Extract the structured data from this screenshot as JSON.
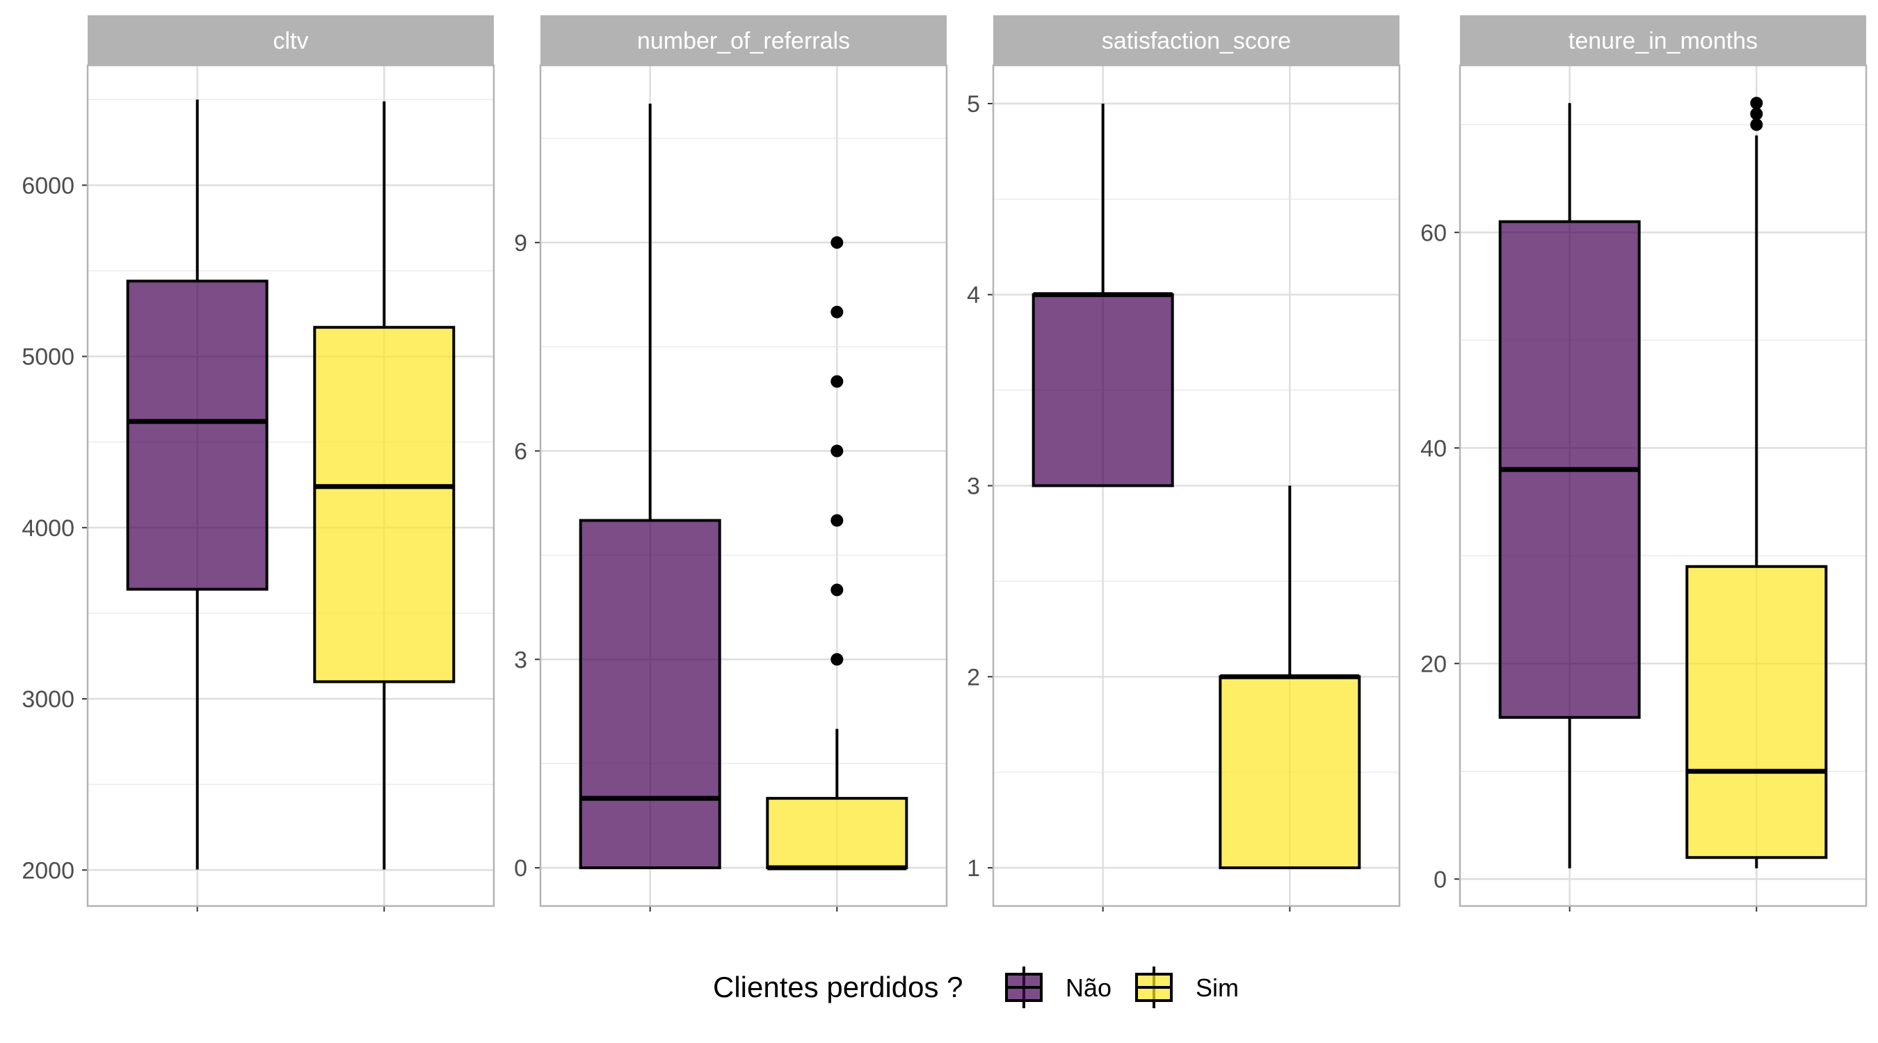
{
  "chart_data": {
    "type": "boxplot",
    "legend": {
      "title": "Clientes perdidos ?",
      "position": "bottom",
      "entries": [
        {
          "label": "Não",
          "color": "#440154"
        },
        {
          "label": "Sim",
          "color": "#FDE725"
        }
      ]
    },
    "fill_alpha": 0.7,
    "grid": true,
    "panels": [
      {
        "title": "cltv",
        "ylim": [
          1790,
          6700
        ],
        "yticks": [
          2000,
          3000,
          4000,
          5000,
          6000
        ],
        "ytick_labels": [
          "2000",
          "3000",
          "4000",
          "5000",
          "6000"
        ],
        "boxes": [
          {
            "group": "Não",
            "whisker_low": 2003,
            "q1": 3640,
            "median": 4620,
            "q3": 5440,
            "whisker_high": 6500,
            "outliers": []
          },
          {
            "group": "Sim",
            "whisker_low": 2003,
            "q1": 3100,
            "median": 4240,
            "q3": 5170,
            "whisker_high": 6490,
            "outliers": []
          }
        ]
      },
      {
        "title": "number_of_referrals",
        "ylim": [
          -0.55,
          11.55
        ],
        "yticks": [
          0,
          3,
          6,
          9
        ],
        "ytick_labels": [
          "0",
          "3",
          "6",
          "9"
        ],
        "boxes": [
          {
            "group": "Não",
            "whisker_low": 0,
            "q1": 0,
            "median": 1,
            "q3": 5,
            "whisker_high": 11,
            "outliers": []
          },
          {
            "group": "Sim",
            "whisker_low": 0,
            "q1": 0,
            "median": 0,
            "q3": 1,
            "whisker_high": 2,
            "outliers": [
              3,
              4,
              5,
              6,
              7,
              8,
              9
            ]
          }
        ]
      },
      {
        "title": "satisfaction_score",
        "ylim": [
          0.8,
          5.2
        ],
        "yticks": [
          1,
          2,
          3,
          4,
          5
        ],
        "ytick_labels": [
          "1",
          "2",
          "3",
          "4",
          "5"
        ],
        "boxes": [
          {
            "group": "Não",
            "whisker_low": 3,
            "q1": 3,
            "median": 4,
            "q3": 4,
            "whisker_high": 5,
            "outliers": []
          },
          {
            "group": "Sim",
            "whisker_low": 1,
            "q1": 1,
            "median": 2,
            "q3": 2,
            "whisker_high": 3,
            "outliers": []
          }
        ]
      },
      {
        "title": "tenure_in_months",
        "ylim": [
          -2.5,
          75.5
        ],
        "yticks": [
          0,
          20,
          40,
          60
        ],
        "ytick_labels": [
          "0",
          "20",
          "40",
          "60"
        ],
        "boxes": [
          {
            "group": "Não",
            "whisker_low": 1,
            "q1": 15,
            "median": 38,
            "q3": 61,
            "whisker_high": 72,
            "outliers": []
          },
          {
            "group": "Sim",
            "whisker_low": 1,
            "q1": 2,
            "median": 10,
            "q3": 29,
            "whisker_high": 69,
            "outliers": [
              70,
              71,
              72
            ]
          }
        ]
      }
    ]
  }
}
